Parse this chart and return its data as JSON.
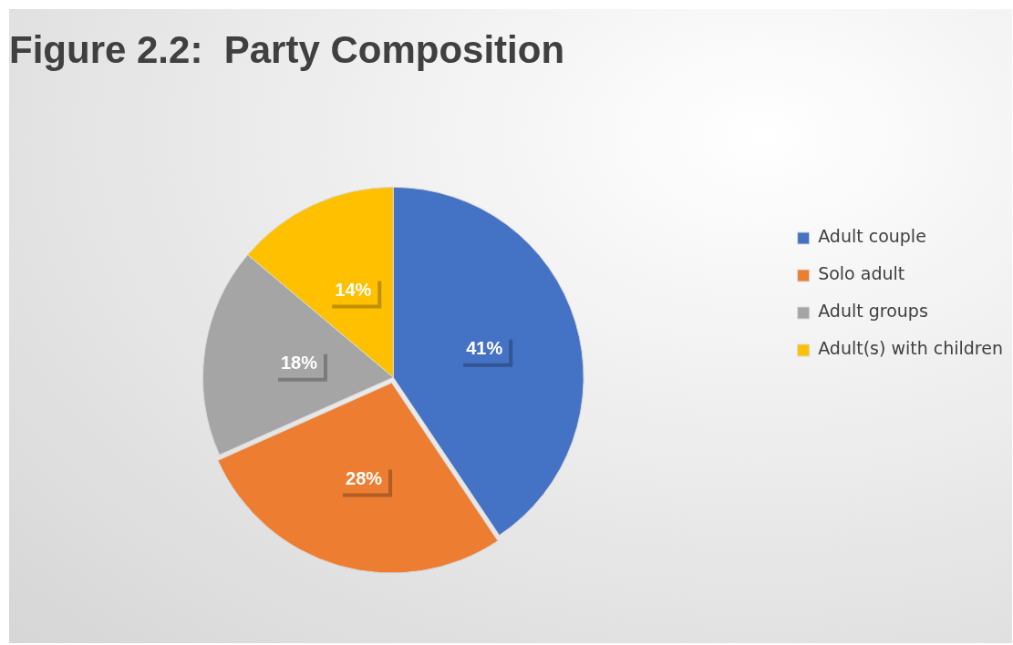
{
  "chart_data": {
    "type": "pie",
    "title": "Figure 2.2:  Party Composition",
    "categories": [
      "Adult couple",
      "Solo adult",
      "Adult groups",
      "Adult(s) with children"
    ],
    "values": [
      41,
      28,
      18,
      14
    ],
    "colors": [
      "#4472c4",
      "#ed7d31",
      "#a5a5a5",
      "#ffc000"
    ],
    "value_labels": [
      "41%",
      "28%",
      "18%",
      "14%"
    ],
    "legend": "right"
  }
}
